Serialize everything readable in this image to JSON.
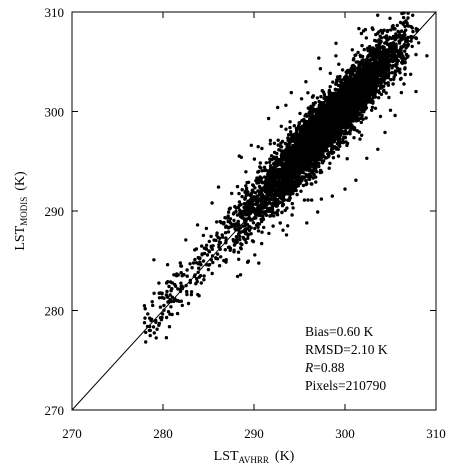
{
  "chart_data": {
    "type": "scatter",
    "title": "",
    "xlabel": {
      "main": "LST",
      "sub": "AVHRR",
      "unit": "(K)"
    },
    "ylabel": {
      "main": "LST",
      "sub": "MODIS",
      "unit": "(K)"
    },
    "xlim": [
      270,
      310
    ],
    "ylim": [
      270,
      310
    ],
    "xticks": [
      "270",
      "280",
      "290",
      "300",
      "310"
    ],
    "yticks": [
      "270",
      "280",
      "290",
      "300",
      "310"
    ],
    "grid": false,
    "reference_line": "1:1",
    "legend": "none",
    "annotations": [
      {
        "label": "Bias",
        "value": "=0.60  K"
      },
      {
        "label": "RMSD",
        "value": "=2.10  K"
      },
      {
        "label": "R",
        "value": "=0.88"
      },
      {
        "label": "Pixels",
        "value": "=210790"
      }
    ],
    "annotation_position": "bottom-right",
    "series": [
      {
        "marker_color": "#000000",
        "point_count": 210790,
        "distribution": {
          "x_range": [
            277.9,
            309.0
          ],
          "y_range": [
            277.6,
            308.4
          ],
          "dense_core_x": [
            288.0,
            306.5
          ],
          "dense_core_center": [
            298.0,
            298.5
          ],
          "slope_approx": 1.0,
          "bias": 0.6,
          "rmsd": 2.1
        },
        "points": [
          [
            278.1,
            277.8
          ],
          [
            278.3,
            278.4
          ],
          [
            279.0,
            285.1
          ],
          [
            279.2,
            279.0
          ],
          [
            279.6,
            278.7
          ],
          [
            280.1,
            280.5
          ],
          [
            280.4,
            279.3
          ],
          [
            280.9,
            280.9
          ],
          [
            281.3,
            282.6
          ],
          [
            281.6,
            281.0
          ],
          [
            282.0,
            282.4
          ],
          [
            282.3,
            283.6
          ],
          [
            282.6,
            281.9
          ],
          [
            283.0,
            282.8
          ],
          [
            283.2,
            284.3
          ],
          [
            283.7,
            283.2
          ],
          [
            284.0,
            284.8
          ],
          [
            284.3,
            285.6
          ],
          [
            284.8,
            284.6
          ],
          [
            285.1,
            285.9
          ],
          [
            285.5,
            286.5
          ],
          [
            285.8,
            285.3
          ],
          [
            286.2,
            286.9
          ],
          [
            286.5,
            287.6
          ],
          [
            286.9,
            286.8
          ],
          [
            287.2,
            287.9
          ],
          [
            287.6,
            288.6
          ],
          [
            288.0,
            288.1
          ],
          [
            280.5,
            284.6
          ],
          [
            282.5,
            287.1
          ],
          [
            283.8,
            288.6
          ],
          [
            286.1,
            292.4
          ],
          [
            287.3,
            290.2
          ],
          [
            288.4,
            290.9
          ],
          [
            289.1,
            292.0
          ],
          [
            290.2,
            289.3
          ],
          [
            290.8,
            291.9
          ],
          [
            291.4,
            293.2
          ],
          [
            292.0,
            291.4
          ],
          [
            292.6,
            294.1
          ],
          [
            293.1,
            292.8
          ],
          [
            293.7,
            295.0
          ],
          [
            294.2,
            293.9
          ],
          [
            294.8,
            296.2
          ],
          [
            295.3,
            294.7
          ],
          [
            295.9,
            297.0
          ],
          [
            296.4,
            296.0
          ],
          [
            297.0,
            298.1
          ],
          [
            297.6,
            296.8
          ],
          [
            298.1,
            299.2
          ],
          [
            298.7,
            298.2
          ],
          [
            299.2,
            300.3
          ],
          [
            299.8,
            299.0
          ],
          [
            300.3,
            301.1
          ],
          [
            300.9,
            300.2
          ],
          [
            301.4,
            302.0
          ],
          [
            302.0,
            301.3
          ],
          [
            302.6,
            303.1
          ],
          [
            303.1,
            302.5
          ],
          [
            303.7,
            304.0
          ],
          [
            304.2,
            303.6
          ],
          [
            304.8,
            305.1
          ],
          [
            305.3,
            304.6
          ],
          [
            305.9,
            306.0
          ],
          [
            306.4,
            305.5
          ],
          [
            306.9,
            306.6
          ],
          [
            307.4,
            308.4
          ],
          [
            308.1,
            306.9
          ],
          [
            309.0,
            305.6
          ],
          [
            307.8,
            302.0
          ],
          [
            306.2,
            301.9
          ],
          [
            305.5,
            299.6
          ],
          [
            304.4,
            297.9
          ],
          [
            303.6,
            296.2
          ],
          [
            302.4,
            295.3
          ],
          [
            301.2,
            293.1
          ],
          [
            300.0,
            292.2
          ],
          [
            298.6,
            291.5
          ],
          [
            297.0,
            289.9
          ],
          [
            295.8,
            288.8
          ],
          [
            289.7,
            296.6
          ],
          [
            291.6,
            299.3
          ],
          [
            292.6,
            300.4
          ],
          [
            294.1,
            301.9
          ],
          [
            295.7,
            303.0
          ],
          [
            297.3,
            304.3
          ],
          [
            299.0,
            305.6
          ],
          [
            300.8,
            306.2
          ],
          [
            285.4,
            290.8
          ],
          [
            288.6,
            295.4
          ],
          [
            278.6,
            278.0
          ],
          [
            279.9,
            281.3
          ],
          [
            281.0,
            279.6
          ],
          [
            282.8,
            280.7
          ],
          [
            284.5,
            283.1
          ],
          [
            285.9,
            288.9
          ],
          [
            287.8,
            285.9
          ],
          [
            288.9,
            287.2
          ],
          [
            290.5,
            288.0
          ],
          [
            291.8,
            297.1
          ]
        ]
      }
    ]
  }
}
